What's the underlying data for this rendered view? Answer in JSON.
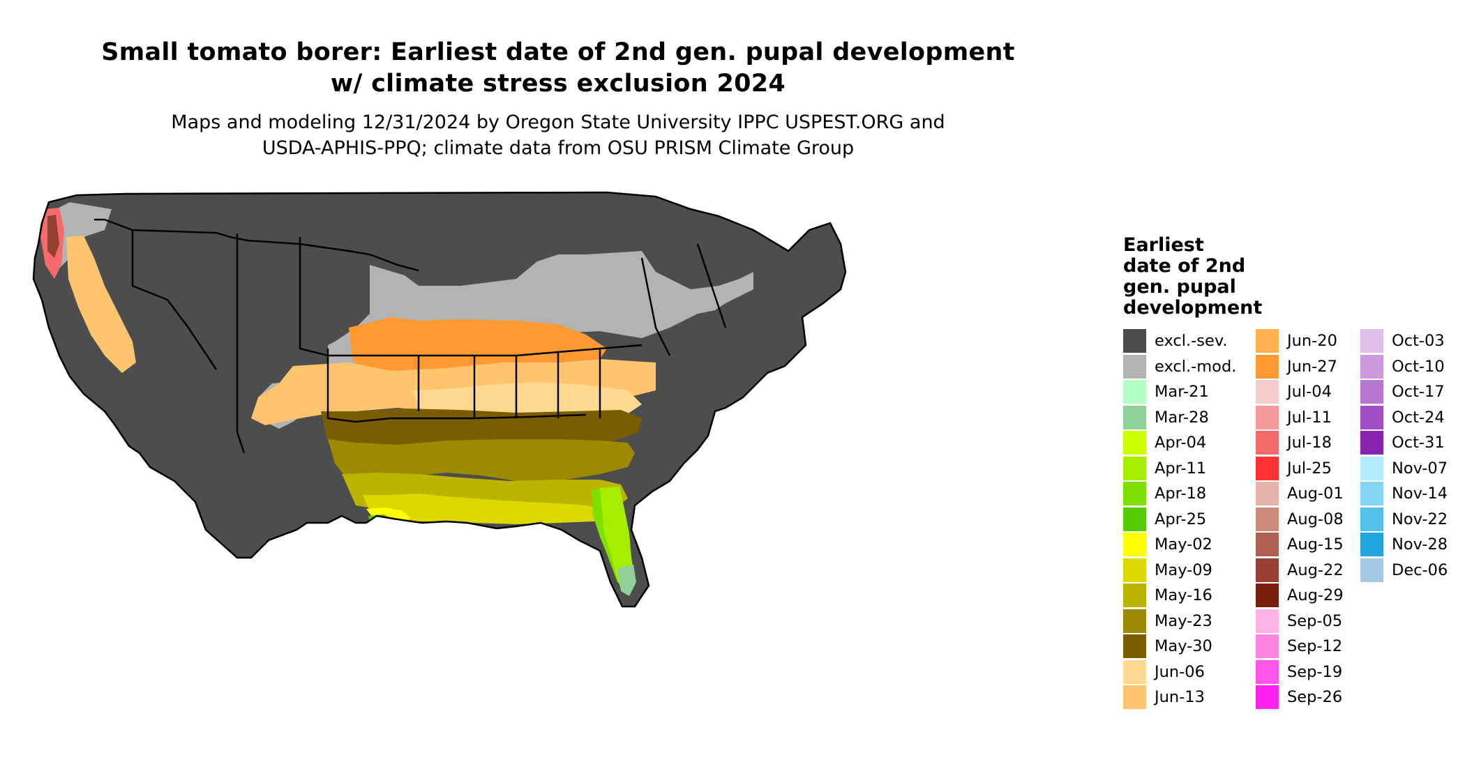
{
  "title_line1": "Small tomato borer: Earliest date of 2nd gen. pupal development",
  "title_line2": "w/ climate stress exclusion 2024",
  "subtitle_line1": "Maps and modeling 12/31/2024 by Oregon State University IPPC USPEST.ORG and",
  "subtitle_line2": "USDA-APHIS-PPQ; climate data from OSU PRISM Climate Group",
  "legend": {
    "title_lines": [
      "Earliest",
      "date of 2nd",
      "gen. pupal",
      "development"
    ],
    "columns": [
      [
        {
          "label": "excl.-sev.",
          "color": "#4d4d4d"
        },
        {
          "label": "excl.-mod.",
          "color": "#b3b3b3"
        },
        {
          "label": "Mar-21",
          "color": "#b3ffc6"
        },
        {
          "label": "Mar-28",
          "color": "#8fd199"
        },
        {
          "label": "Apr-04",
          "color": "#ccff00"
        },
        {
          "label": "Apr-11",
          "color": "#a6ee00"
        },
        {
          "label": "Apr-18",
          "color": "#7fe000"
        },
        {
          "label": "Apr-25",
          "color": "#55cc00"
        },
        {
          "label": "May-02",
          "color": "#ffff00"
        },
        {
          "label": "May-09",
          "color": "#dcd800"
        },
        {
          "label": "May-16",
          "color": "#bcb400"
        },
        {
          "label": "May-23",
          "color": "#9c8a00"
        },
        {
          "label": "May-30",
          "color": "#7a5d00"
        },
        {
          "label": "Jun-06",
          "color": "#ffd990"
        },
        {
          "label": "Jun-13",
          "color": "#ffc56e"
        }
      ],
      [
        {
          "label": "Jun-20",
          "color": "#ffb050"
        },
        {
          "label": "Jun-27",
          "color": "#ff9a33"
        },
        {
          "label": "Jul-04",
          "color": "#f5cccc"
        },
        {
          "label": "Jul-11",
          "color": "#f59a9a"
        },
        {
          "label": "Jul-18",
          "color": "#f56a6a"
        },
        {
          "label": "Jul-25",
          "color": "#ff3333"
        },
        {
          "label": "Aug-01",
          "color": "#e6b3a8"
        },
        {
          "label": "Aug-08",
          "color": "#cc8a7a"
        },
        {
          "label": "Aug-15",
          "color": "#b06050"
        },
        {
          "label": "Aug-22",
          "color": "#973f30"
        },
        {
          "label": "Aug-29",
          "color": "#7a1c0e"
        },
        {
          "label": "Sep-05",
          "color": "#ffb3e6"
        },
        {
          "label": "Sep-12",
          "color": "#ff85e0"
        },
        {
          "label": "Sep-19",
          "color": "#ff55e8"
        },
        {
          "label": "Sep-26",
          "color": "#ff22ee"
        }
      ],
      [
        {
          "label": "Oct-03",
          "color": "#e2bfe8"
        },
        {
          "label": "Oct-10",
          "color": "#cc99dd"
        },
        {
          "label": "Oct-17",
          "color": "#b575d0"
        },
        {
          "label": "Oct-24",
          "color": "#a04fc4"
        },
        {
          "label": "Oct-31",
          "color": "#8a22b0"
        },
        {
          "label": "Nov-07",
          "color": "#b3ecff"
        },
        {
          "label": "Nov-14",
          "color": "#85d6f5"
        },
        {
          "label": "Nov-22",
          "color": "#55c0ea"
        },
        {
          "label": "Nov-28",
          "color": "#22a5de"
        },
        {
          "label": "Dec-06",
          "color": "#a5c8e8"
        }
      ]
    ]
  }
}
